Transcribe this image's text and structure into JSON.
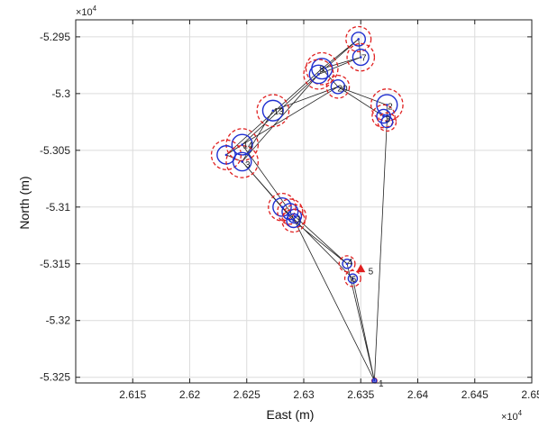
{
  "chart_data": {
    "type": "scatter",
    "title": "",
    "xlabel": "East (m)",
    "ylabel": "North (m)",
    "x_exponent_label": "×10",
    "x_exponent_power": "4",
    "y_exponent_label": "×10",
    "y_exponent_power": "4",
    "xlim": [
      2.61,
      2.65
    ],
    "ylim": [
      -5.3255,
      -5.2935
    ],
    "x_ticks": [
      "2.615",
      "2.62",
      "2.625",
      "2.63",
      "2.635",
      "2.64",
      "2.645",
      "2.65"
    ],
    "x_tick_values": [
      2.615,
      2.62,
      2.625,
      2.63,
      2.635,
      2.64,
      2.645,
      2.65
    ],
    "y_ticks": [
      "-5.295",
      "-5.3",
      "-5.305",
      "-5.31",
      "-5.315",
      "-5.32",
      "-5.325"
    ],
    "y_tick_values": [
      -5.295,
      -5.3,
      -5.305,
      -5.31,
      -5.315,
      -5.32,
      -5.325
    ],
    "grid": true,
    "colors": {
      "inner_circle": "#1f2fd0",
      "outer_circle": "#e02020",
      "path_line": "#222222",
      "marker": "#e02020",
      "grid": "#dcdcdc"
    },
    "points": [
      {
        "label": "1",
        "x": 2.6362,
        "y": -5.3253,
        "r_in": 0.00018,
        "r_out": 0.00022
      },
      {
        "label": "",
        "x": 2.6338,
        "y": -5.315,
        "r_in": 0.0004,
        "r_out": 0.0007
      },
      {
        "label": "",
        "x": 2.6343,
        "y": -5.3163,
        "r_in": 0.0004,
        "r_out": 0.0007
      },
      {
        "label": "",
        "x": 2.6348,
        "y": -5.2952,
        "r_in": 0.0006,
        "r_out": 0.0011
      },
      {
        "label": "",
        "x": 2.635,
        "y": -5.2968,
        "r_in": 0.0007,
        "r_out": 0.0012
      },
      {
        "label": "",
        "x": 2.6316,
        "y": -5.2978,
        "r_in": 0.0009,
        "r_out": 0.0014
      },
      {
        "label": "",
        "x": 2.6313,
        "y": -5.2983,
        "r_in": 0.0008,
        "r_out": 0.0013
      },
      {
        "label": "",
        "x": 2.633,
        "y": -5.2994,
        "r_in": 0.0006,
        "r_out": 0.001
      },
      {
        "label": "",
        "x": 2.6373,
        "y": -5.301,
        "r_in": 0.0009,
        "r_out": 0.0014
      },
      {
        "label": "",
        "x": 2.637,
        "y": -5.302,
        "r_in": 0.0006,
        "r_out": 0.001
      },
      {
        "label": "",
        "x": 2.6373,
        "y": -5.3025,
        "r_in": 0.0005,
        "r_out": 0.0008
      },
      {
        "label": "",
        "x": 2.6273,
        "y": -5.3015,
        "r_in": 0.0009,
        "r_out": 0.0014
      },
      {
        "label": "",
        "x": 2.6246,
        "y": -5.3045,
        "r_in": 0.0009,
        "r_out": 0.0014
      },
      {
        "label": "",
        "x": 2.6232,
        "y": -5.3054,
        "r_in": 0.0008,
        "r_out": 0.0013
      },
      {
        "label": "",
        "x": 2.6246,
        "y": -5.306,
        "r_in": 0.0008,
        "r_out": 0.0014
      },
      {
        "label": "",
        "x": 2.6281,
        "y": -5.31,
        "r_in": 0.0008,
        "r_out": 0.0012
      },
      {
        "label": "",
        "x": 2.6288,
        "y": -5.3104,
        "r_in": 0.0007,
        "r_out": 0.0011
      },
      {
        "label": "",
        "x": 2.6292,
        "y": -5.3108,
        "r_in": 0.0006,
        "r_out": 0.001
      },
      {
        "label": "",
        "x": 2.6291,
        "y": -5.3112,
        "r_in": 0.0006,
        "r_out": 0.001
      }
    ],
    "point_labels": [
      {
        "text": "1",
        "x": 2.6364,
        "y": -5.3255
      },
      {
        "text": "4",
        "x": 2.6337,
        "y": -5.3148
      },
      {
        "text": "6",
        "x": 2.634,
        "y": -5.3163
      },
      {
        "text": "5",
        "x": 2.6355,
        "y": -5.3156
      },
      {
        "text": "7",
        "x": 2.6349,
        "y": -5.2968
      },
      {
        "text": "8",
        "x": 2.6312,
        "y": -5.2978
      },
      {
        "text": "20",
        "x": 2.6328,
        "y": -5.2995
      },
      {
        "text": "2",
        "x": 2.6372,
        "y": -5.3011
      },
      {
        "text": "3",
        "x": 2.637,
        "y": -5.3022
      },
      {
        "text": "13",
        "x": 2.6272,
        "y": -5.3015
      },
      {
        "text": "14",
        "x": 2.6245,
        "y": -5.3045
      },
      {
        "text": "3",
        "x": 2.6247,
        "y": -5.3062
      },
      {
        "text": "1",
        "x": 2.6292,
        "y": -5.311
      }
    ],
    "path": [
      [
        2.6362,
        -5.3253
      ],
      [
        2.6338,
        -5.315
      ],
      [
        2.6291,
        -5.3112
      ],
      [
        2.6246,
        -5.306
      ],
      [
        2.6232,
        -5.3054
      ],
      [
        2.6246,
        -5.3045
      ],
      [
        2.6313,
        -5.2983
      ],
      [
        2.6348,
        -5.2952
      ],
      [
        2.635,
        -5.2968
      ],
      [
        2.6316,
        -5.2978
      ],
      [
        2.633,
        -5.2994
      ],
      [
        2.6273,
        -5.3015
      ],
      [
        2.6246,
        -5.306
      ],
      [
        2.6281,
        -5.31
      ],
      [
        2.6343,
        -5.3163
      ],
      [
        2.6362,
        -5.3253
      ],
      [
        2.6373,
        -5.3025
      ],
      [
        2.6373,
        -5.301
      ],
      [
        2.633,
        -5.2994
      ],
      [
        2.6246,
        -5.3045
      ],
      [
        2.6288,
        -5.3104
      ],
      [
        2.6362,
        -5.3253
      ]
    ],
    "extra_lines": [
      [
        [
          2.6313,
          -5.2983
        ],
        [
          2.635,
          -5.2968
        ]
      ],
      [
        [
          2.6316,
          -5.2978
        ],
        [
          2.6348,
          -5.2952
        ]
      ],
      [
        [
          2.6232,
          -5.3054
        ],
        [
          2.6316,
          -5.2978
        ]
      ],
      [
        [
          2.6246,
          -5.306
        ],
        [
          2.6313,
          -5.2983
        ]
      ],
      [
        [
          2.637,
          -5.302
        ],
        [
          2.633,
          -5.2994
        ]
      ],
      [
        [
          2.6292,
          -5.3108
        ],
        [
          2.6338,
          -5.315
        ]
      ]
    ],
    "marker": {
      "label": "5",
      "x": 2.635,
      "y": -5.3155
    }
  }
}
